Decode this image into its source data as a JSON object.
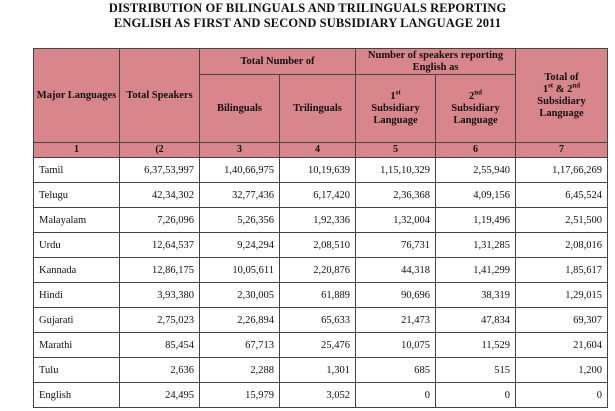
{
  "title_line1": "DISTRIBUTION OF BILINGUALS AND TRILINGUALS REPORTING",
  "title_line2": "ENGLISH AS FIRST AND SECOND SUBSIDIARY LANGUAGE 2011",
  "headers": {
    "major_languages": "Major Languages",
    "total_speakers": "Total Speakers",
    "total_number_of": "Total Number of",
    "bilinguals": "Bilinguals",
    "trilinguals": "Trilinguals",
    "num_speakers_english": "Number of speakers reporting English as",
    "first_sub_num": "1",
    "first_sub_sup": "st",
    "first_sub_text": "Subsidiary Language",
    "second_sub_num": "2",
    "second_sub_sup": "nd",
    "second_sub_text": "Subsidiary Language",
    "total_a": "Total of",
    "total_sup1": "st",
    "total_b": "& 2",
    "total_sup2": "nd",
    "total_c": "Subsidiary Language",
    "total_pre": "1"
  },
  "col_numbers": [
    "1",
    "(2",
    "3",
    "4",
    "5",
    "6",
    "7"
  ],
  "rows": [
    [
      "Tamil",
      "6,37,53,997",
      "1,40,66,975",
      "10,19,639",
      "1,15,10,329",
      "2,55,940",
      "1,17,66,269"
    ],
    [
      "Telugu",
      "42,34,302",
      "32,77,436",
      "6,17,420",
      "2,36,368",
      "4,09,156",
      "6,45,524"
    ],
    [
      "Malayalam",
      "7,26,096",
      "5,26,356",
      "1,92,336",
      "1,32,004",
      "1,19,496",
      "2,51,500"
    ],
    [
      "Urdu",
      "12,64,537",
      "9,24,294",
      "2,08,510",
      "76,731",
      "1,31,285",
      "2,08,016"
    ],
    [
      "Kannada",
      "12,86,175",
      "10,05,611",
      "2,20,876",
      "44,318",
      "1,41,299",
      "1,85,617"
    ],
    [
      "Hindi",
      "3,93,380",
      "2,30,005",
      "61,889",
      "90,696",
      "38,319",
      "1,29,015"
    ],
    [
      "Gujarati",
      "2,75,023",
      "2,26,894",
      "65,633",
      "21,473",
      "47,834",
      "69,307"
    ],
    [
      "Marathi",
      "85,454",
      "67,713",
      "25,476",
      "10,075",
      "11,529",
      "21,604"
    ],
    [
      "Tulu",
      "2,636",
      "2,288",
      "1,301",
      "685",
      "515",
      "1,200"
    ],
    [
      "English",
      "24,495",
      "15,979",
      "3,052",
      "0",
      "0",
      "0"
    ]
  ],
  "colors": {
    "header_bg": "#d9858c",
    "border": "#444444"
  }
}
